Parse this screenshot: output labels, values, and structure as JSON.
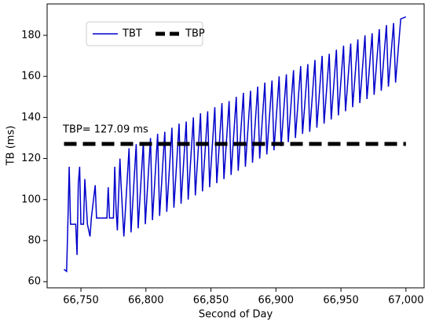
{
  "chart_data": {
    "type": "line",
    "x_label": "Second of Day",
    "y_label": "TB (ms)",
    "annotation": "TBP=  127.09 ms",
    "xlim": [
      66724,
      67014
    ],
    "ylim": [
      57,
      195.3
    ],
    "xticks": [
      {
        "value": 66750,
        "label": "66,750"
      },
      {
        "value": 66800,
        "label": "66,800"
      },
      {
        "value": 66850,
        "label": "66,850"
      },
      {
        "value": 66900,
        "label": "66,900"
      },
      {
        "value": 66950,
        "label": "66,950"
      },
      {
        "value": 67000,
        "label": "67,000"
      }
    ],
    "yticks": [
      60,
      80,
      100,
      120,
      140,
      160,
      180
    ],
    "legend": "upper left",
    "series": [
      {
        "name": "TBT",
        "color": "#0000cc",
        "style": "solid",
        "x": [
          66737,
          66739,
          66740,
          66741,
          66742,
          66746,
          66747,
          66748,
          66749,
          66750,
          66752,
          66753,
          66755,
          66757,
          66758,
          66761,
          66762,
          66770,
          66771,
          66772,
          66775,
          66776,
          66777,
          66778,
          66780,
          66781,
          66783,
          66787,
          66788.5,
          66792.5,
          66794,
          66798,
          66799.5,
          66803.5,
          66805,
          66809,
          66810.5,
          66814.5,
          66816,
          66820,
          66821.5,
          66825.5,
          66827,
          66831,
          66832.5,
          66836.5,
          66838,
          66842,
          66843.5,
          66847.5,
          66849,
          66853,
          66854.5,
          66858.5,
          66860,
          66864,
          66865.5,
          66869.5,
          66871,
          66875,
          66876.5,
          66880.5,
          66882,
          66886,
          66887.5,
          66891.5,
          66893,
          66897,
          66898.5,
          66902.5,
          66904,
          66908,
          66909.5,
          66913.5,
          66915,
          66919,
          66920.5,
          66924.5,
          66926,
          66930,
          66931.5,
          66935.5,
          66937,
          66941,
          66942.5,
          66946.5,
          66948,
          66952,
          66953.5,
          66957.5,
          66959,
          66963,
          66964.5,
          66968.5,
          66970,
          66974,
          66975.5,
          66979.5,
          66981,
          66985,
          66986.5,
          66990.5,
          66992,
          66996,
          67000
        ],
        "values": [
          66,
          65,
          90,
          116,
          88,
          88,
          73,
          108,
          116,
          88,
          88,
          110,
          88,
          82,
          91,
          107,
          91,
          91,
          106,
          91,
          91,
          116,
          96,
          85,
          120,
          106,
          82,
          125,
          84,
          127,
          86,
          128,
          88,
          130,
          90,
          132,
          92,
          133,
          94,
          135,
          96,
          137,
          98,
          138,
          100,
          140,
          102,
          142,
          104,
          143,
          106,
          145,
          108,
          147,
          110,
          148,
          112,
          150,
          114,
          152,
          116,
          153,
          118,
          155,
          120,
          157,
          122,
          158,
          124,
          160,
          126,
          161,
          128,
          163,
          130,
          165,
          132,
          166,
          133,
          168,
          135,
          170,
          137,
          171,
          139,
          173,
          141,
          175,
          143,
          176,
          145,
          178,
          147,
          180,
          149,
          181,
          151,
          183,
          153,
          185,
          155,
          186,
          157,
          188,
          189
        ]
      },
      {
        "name": "TBP",
        "color": "#000000",
        "style": "dashed",
        "x": [
          66737,
          67000
        ],
        "values": [
          127.09,
          127.09
        ]
      }
    ]
  }
}
